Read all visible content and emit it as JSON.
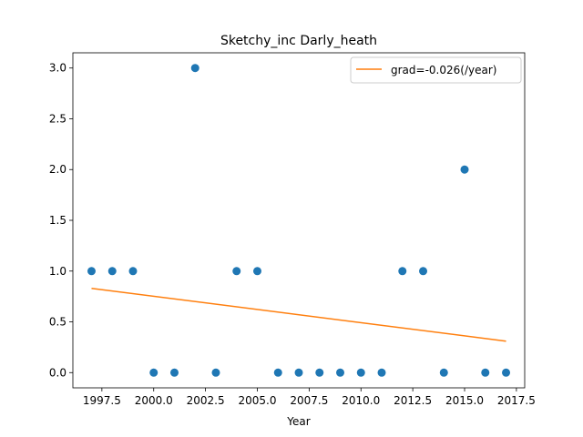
{
  "chart_data": {
    "type": "scatter",
    "title": "Sketchy_inc Darly_heath",
    "xlabel": "Year",
    "ylabel": "",
    "xlim": [
      1996.1,
      2017.9
    ],
    "ylim": [
      -0.15,
      3.15
    ],
    "xticks": [
      1997.5,
      2000.0,
      2002.5,
      2005.0,
      2007.5,
      2010.0,
      2012.5,
      2015.0,
      2017.5
    ],
    "xtick_labels": [
      "1997.5",
      "2000.0",
      "2002.5",
      "2005.0",
      "2007.5",
      "2010.0",
      "2012.5",
      "2015.0",
      "2017.5"
    ],
    "yticks": [
      0.0,
      0.5,
      1.0,
      1.5,
      2.0,
      2.5,
      3.0
    ],
    "ytick_labels": [
      "0.0",
      "0.5",
      "1.0",
      "1.5",
      "2.0",
      "2.5",
      "3.0"
    ],
    "grid": false,
    "legend_position": "top-right",
    "points": {
      "x": [
        1997,
        1998,
        1999,
        2000,
        2001,
        2002,
        2003,
        2004,
        2005,
        2006,
        2007,
        2008,
        2009,
        2010,
        2011,
        2012,
        2013,
        2014,
        2015,
        2016,
        2017
      ],
      "y": [
        1,
        1,
        1,
        0,
        0,
        3,
        0,
        1,
        1,
        0,
        0,
        0,
        0,
        0,
        0,
        1,
        1,
        0,
        2,
        0,
        0
      ],
      "color": "#1f77b4"
    },
    "fit_line": {
      "name": "grad=-0.026(/year)",
      "x": [
        1997,
        2017
      ],
      "y": [
        0.83,
        0.31
      ],
      "color": "#ff7f0e"
    }
  }
}
